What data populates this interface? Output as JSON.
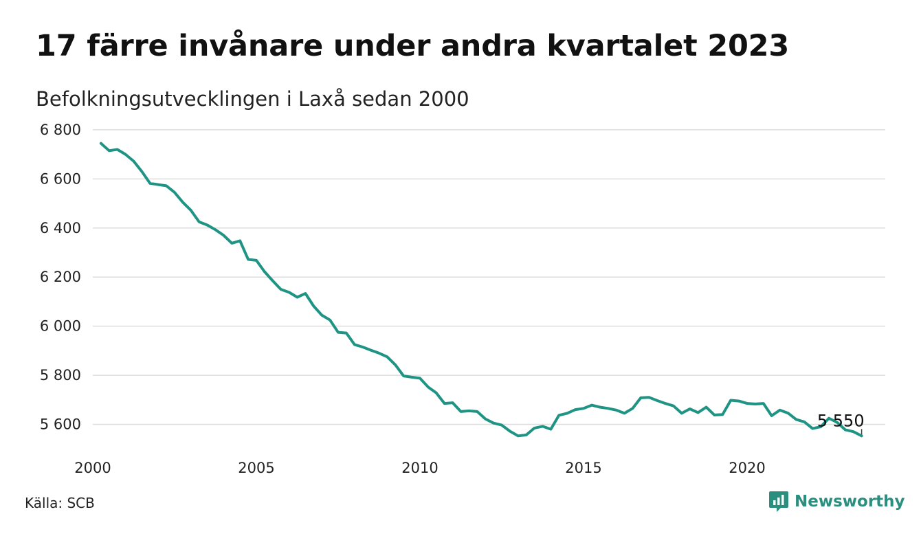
{
  "title": "17 färre invånare under andra kvartalet 2023",
  "subtitle": "Befolkningsutvecklingen i Laxå sedan 2000",
  "source": "Källa: SCB",
  "brand": "Newsworthy",
  "colors": {
    "line": "#1f9484",
    "grid": "#dddddd",
    "brand": "#2a8f7f"
  },
  "chart_data": {
    "type": "line",
    "title": "17 färre invånare under andra kvartalet 2023",
    "subtitle": "Befolkningsutvecklingen i Laxå sedan 2000",
    "xlabel": "",
    "ylabel": "",
    "xlim": [
      2000,
      2024
    ],
    "ylim": [
      5500,
      6800
    ],
    "x_ticks": [
      2000,
      2005,
      2010,
      2015,
      2020
    ],
    "x_tick_labels": [
      "2000",
      "2005",
      "2010",
      "2015",
      "2020"
    ],
    "y_ticks": [
      5600,
      5800,
      6000,
      6200,
      6400,
      6600,
      6800
    ],
    "y_tick_labels": [
      "5 600",
      "5 800",
      "6 000",
      "6 200",
      "6 400",
      "6 600",
      "6 800"
    ],
    "grid": true,
    "end_label": "5 550",
    "series": [
      {
        "x": [
          2000.25,
          2000.5,
          2000.75,
          2001.0,
          2001.25,
          2001.5,
          2001.75,
          2002.0,
          2002.25,
          2002.5,
          2002.75,
          2003.0,
          2003.25,
          2003.5,
          2003.75,
          2004.0,
          2004.25,
          2004.5,
          2004.75,
          2005.0,
          2005.25,
          2005.5,
          2005.75,
          2006.0,
          2006.25,
          2006.5,
          2006.75,
          2007.0,
          2007.25,
          2007.5,
          2007.75,
          2008.0,
          2008.25,
          2008.5,
          2008.75,
          2009.0,
          2009.25,
          2009.5,
          2009.75,
          2010.0,
          2010.25,
          2010.5,
          2010.75,
          2011.0,
          2011.25,
          2011.5,
          2011.75,
          2012.0,
          2012.25,
          2012.5,
          2012.75,
          2013.0,
          2013.25,
          2013.5,
          2013.75,
          2014.0,
          2014.25,
          2014.5,
          2014.75,
          2015.0,
          2015.25,
          2015.5,
          2015.75,
          2016.0,
          2016.25,
          2016.5,
          2016.75,
          2017.0,
          2017.25,
          2017.5,
          2017.75,
          2018.0,
          2018.25,
          2018.5,
          2018.75,
          2019.0,
          2019.25,
          2019.5,
          2019.75,
          2020.0,
          2020.25,
          2020.5,
          2020.75,
          2021.0,
          2021.25,
          2021.5,
          2021.75,
          2022.0,
          2022.25,
          2022.5,
          2022.75,
          2023.0,
          2023.25,
          2023.5
        ],
        "y": [
          6745,
          6715,
          6720,
          6700,
          6672,
          6630,
          6582,
          6577,
          6572,
          6545,
          6505,
          6472,
          6425,
          6412,
          6393,
          6370,
          6338,
          6348,
          6272,
          6268,
          6222,
          6185,
          6150,
          6138,
          6118,
          6133,
          6082,
          6045,
          6025,
          5975,
          5972,
          5925,
          5915,
          5902,
          5890,
          5875,
          5842,
          5797,
          5792,
          5788,
          5752,
          5728,
          5685,
          5688,
          5652,
          5655,
          5652,
          5622,
          5605,
          5597,
          5572,
          5553,
          5557,
          5585,
          5592,
          5580,
          5637,
          5645,
          5660,
          5665,
          5678,
          5670,
          5665,
          5658,
          5645,
          5665,
          5708,
          5710,
          5697,
          5685,
          5675,
          5645,
          5663,
          5648,
          5670,
          5638,
          5640,
          5698,
          5695,
          5685,
          5683,
          5685,
          5635,
          5658,
          5646,
          5620,
          5610,
          5583,
          5590,
          5625,
          5608,
          5578,
          5570,
          5553
        ]
      }
    ]
  }
}
